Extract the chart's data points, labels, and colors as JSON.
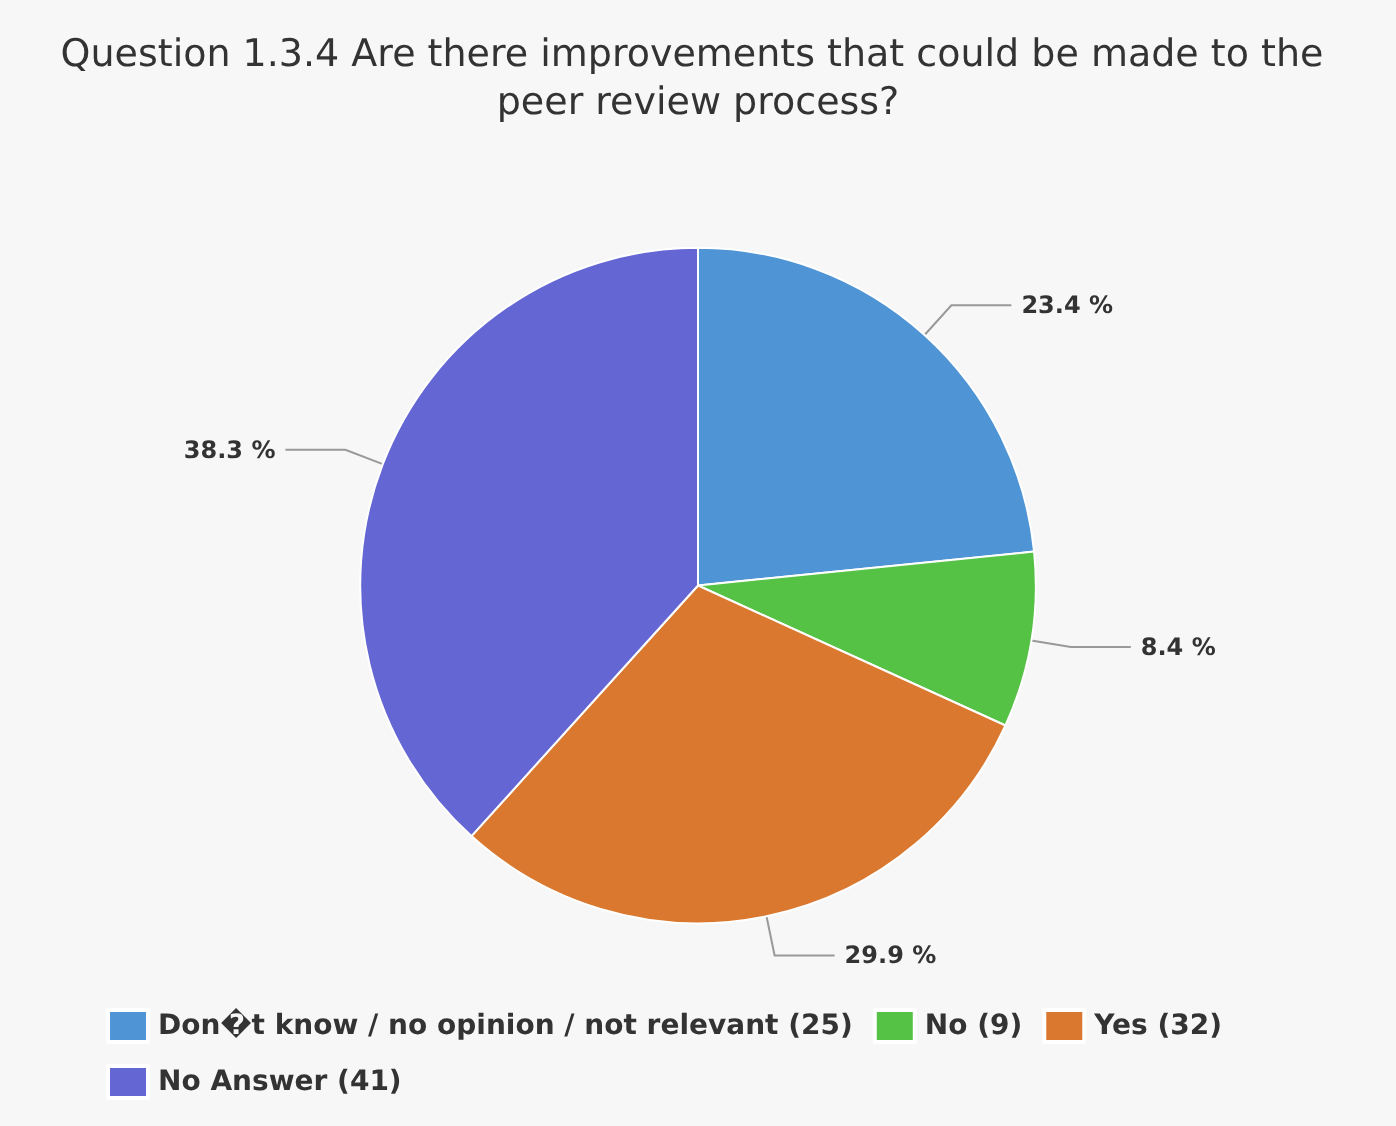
{
  "chart_data": {
    "type": "pie",
    "title": "Question 1.3.4 Are there improvements that could be made to the peer review process?",
    "categories": [
      "Don�t know / no opinion / not relevant (25)",
      "No (9)",
      "Yes (32)",
      "No Answer (41)"
    ],
    "values": [
      23.4,
      8.4,
      29.9,
      38.3
    ],
    "colors": [
      "#4f94d4",
      "#55c145",
      "#d9782e",
      "#6466d3"
    ],
    "value_labels": [
      "23.4 %",
      "8.4 %",
      "29.9 %",
      "38.3 %"
    ],
    "legend": "bottom left"
  }
}
